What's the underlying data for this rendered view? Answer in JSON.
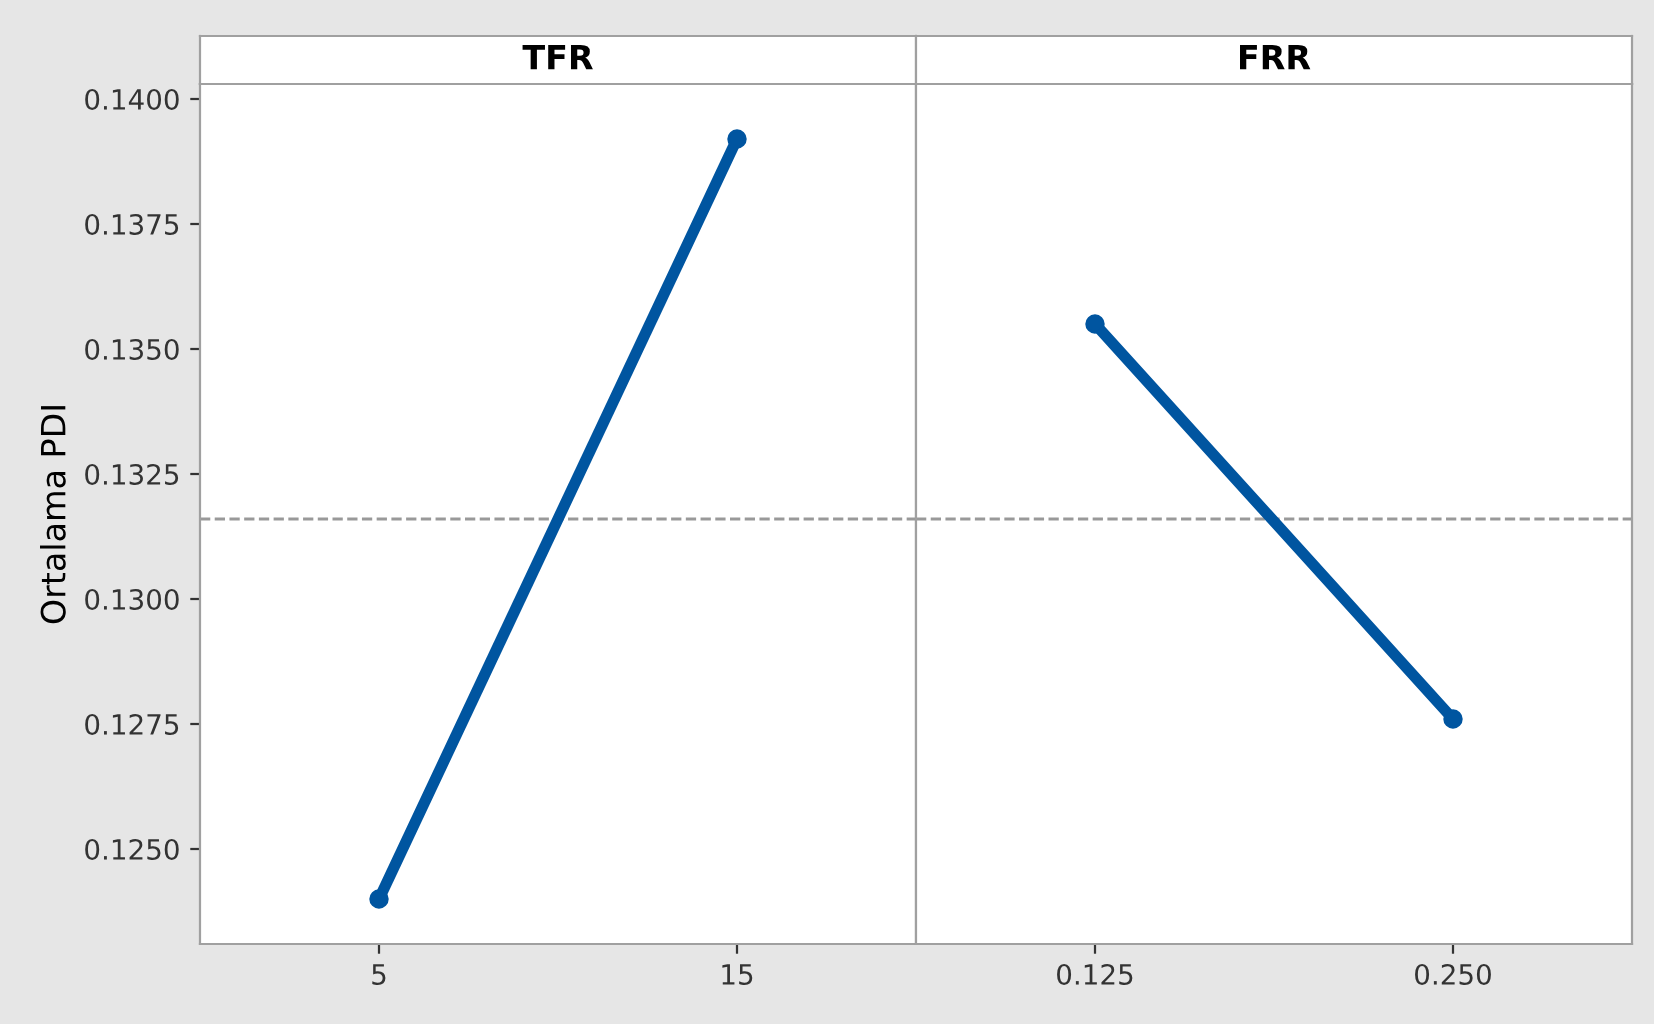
{
  "chart_data": [
    {
      "type": "line",
      "title": "TFR",
      "ylabel": "Ortalama PDI",
      "categories": [
        "5",
        "15"
      ],
      "series": [
        {
          "color": "#0055a0",
          "values": [
            0.124,
            0.1392
          ]
        }
      ],
      "ylim": [
        0.1231,
        0.1403
      ],
      "yticks": [
        {
          "value": 0.125,
          "label": "0.1250"
        },
        {
          "value": 0.1275,
          "label": "0.1275"
        },
        {
          "value": 0.13,
          "label": "0.1300"
        },
        {
          "value": 0.1325,
          "label": "0.1325"
        },
        {
          "value": 0.135,
          "label": "0.1350"
        },
        {
          "value": 0.1375,
          "label": "0.1375"
        },
        {
          "value": 0.14,
          "label": "0.1400"
        }
      ],
      "ref_lines": [
        {
          "axis": "y",
          "value": 0.1316,
          "color": "#999999",
          "line_style": "dashed"
        }
      ],
      "marker": "circle",
      "grid": false
    },
    {
      "type": "line",
      "title": "FRR",
      "categories": [
        "0.125",
        "0.250"
      ],
      "series": [
        {
          "color": "#0055a0",
          "values": [
            0.1355,
            0.1276
          ]
        }
      ],
      "ylim": [
        0.1231,
        0.1403
      ],
      "ref_lines": [
        {
          "axis": "y",
          "value": 0.1316,
          "color": "#999999",
          "line_style": "dashed"
        }
      ],
      "marker": "circle",
      "grid": false,
      "tick_labels": "x"
    }
  ]
}
